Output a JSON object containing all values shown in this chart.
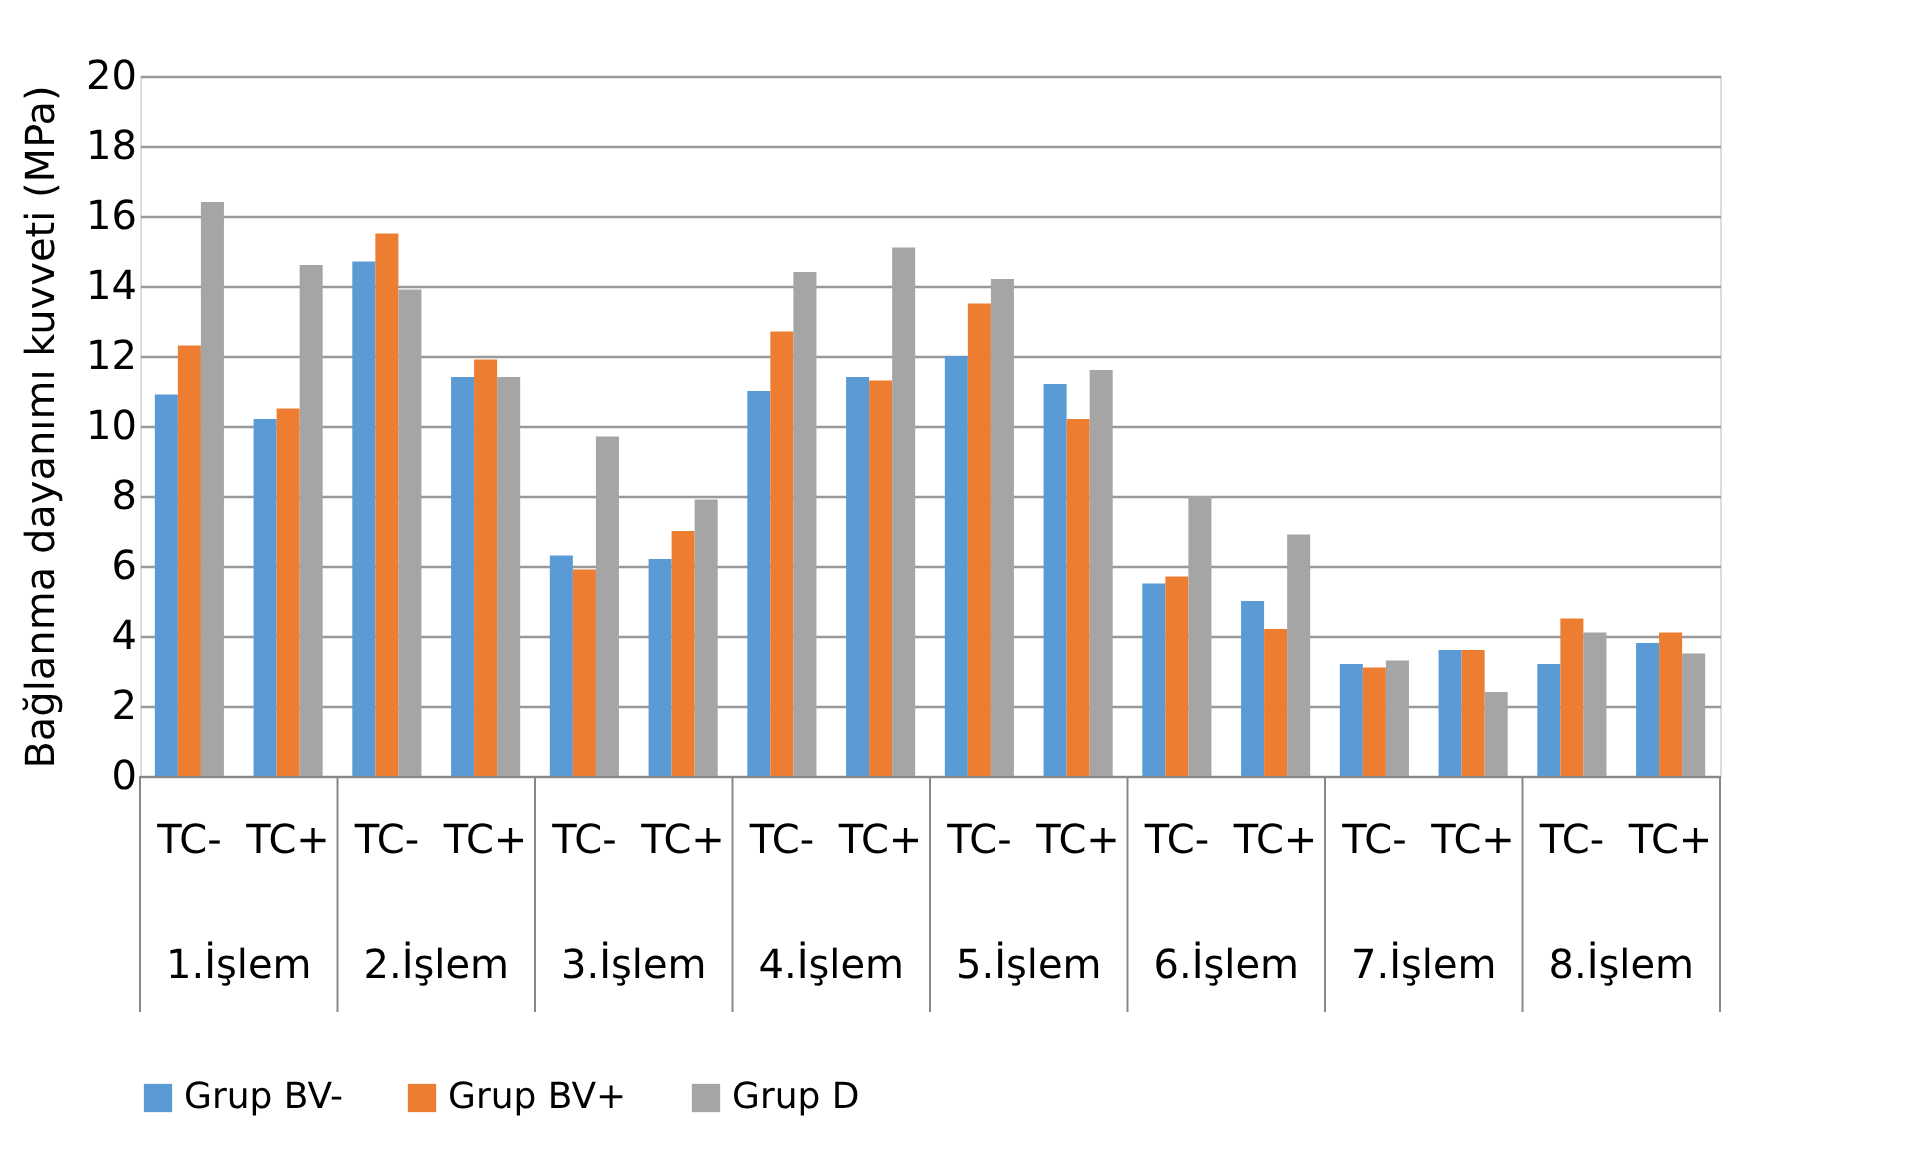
{
  "chart_data": {
    "type": "bar",
    "ylabel": "Bağlanma dayanımı kuvveti (MPa)",
    "categories": [
      "TC-",
      "TC+",
      "TC-",
      "TC+",
      "TC-",
      "TC+",
      "TC-",
      "TC+",
      "TC-",
      "TC+",
      "TC-",
      "TC+",
      "TC-",
      "TC+",
      "TC-",
      "TC+"
    ],
    "annotations": [
      "1.İşlem",
      "2.İşlem",
      "3.İşlem",
      "4.İşlem",
      "5.İşlem",
      "6.İşlem",
      "7.İşlem",
      "8.İşlem"
    ],
    "series": [
      {
        "name": "Grup BV-",
        "color": "#5b9bd5",
        "values": [
          10.9,
          10.2,
          14.7,
          11.4,
          6.3,
          6.2,
          11.0,
          11.4,
          12.0,
          11.2,
          5.5,
          5.0,
          3.2,
          3.6,
          3.2,
          3.8
        ]
      },
      {
        "name": "Grup BV+",
        "color": "#ed7d31",
        "values": [
          12.3,
          10.5,
          15.5,
          11.9,
          5.9,
          7.0,
          12.7,
          11.3,
          13.5,
          10.2,
          5.7,
          4.2,
          3.1,
          3.6,
          4.5,
          4.1
        ]
      },
      {
        "name": "Grup D",
        "color": "#a5a5a5",
        "values": [
          16.4,
          14.6,
          13.9,
          11.4,
          9.7,
          7.9,
          14.4,
          15.1,
          14.2,
          11.6,
          8.0,
          6.9,
          3.3,
          2.4,
          4.1,
          3.5
        ]
      }
    ],
    "ylim": [
      0,
      20
    ],
    "yticks": [
      0,
      2,
      4,
      6,
      8,
      10,
      12,
      14,
      16,
      18,
      20
    ],
    "grid": "y",
    "legend": "bottom"
  }
}
